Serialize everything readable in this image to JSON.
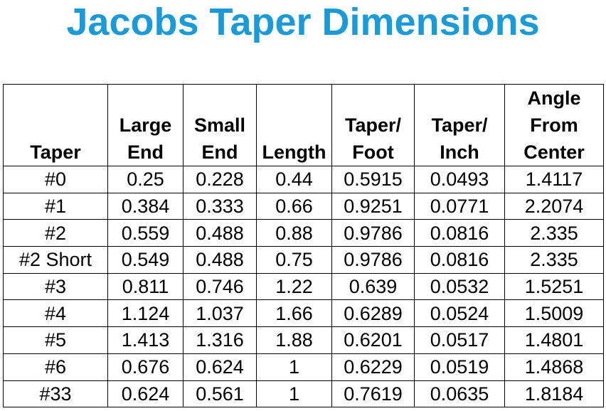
{
  "header": {
    "title": "Jacobs Taper Dimensions"
  },
  "table": {
    "columns": [
      [
        "Taper"
      ],
      [
        "Large",
        "End"
      ],
      [
        "Small",
        "End"
      ],
      [
        "Length"
      ],
      [
        "Taper/",
        "Foot"
      ],
      [
        "Taper/",
        "Inch"
      ],
      [
        "Angle",
        "From",
        "Center"
      ]
    ],
    "rows": [
      [
        "#0",
        "0.25",
        "0.228",
        "0.44",
        "0.5915",
        "0.0493",
        "1.4117"
      ],
      [
        "#1",
        "0.384",
        "0.333",
        "0.66",
        "0.9251",
        "0.0771",
        "2.2074"
      ],
      [
        "#2",
        "0.559",
        "0.488",
        "0.88",
        "0.9786",
        "0.0816",
        "2.335"
      ],
      [
        "#2 Short",
        "0.549",
        "0.488",
        "0.75",
        "0.9786",
        "0.0816",
        "2.335"
      ],
      [
        "#3",
        "0.811",
        "0.746",
        "1.22",
        "0.639",
        "0.0532",
        "1.5251"
      ],
      [
        "#4",
        "1.124",
        "1.037",
        "1.66",
        "0.6289",
        "0.0524",
        "1.5009"
      ],
      [
        "#5",
        "1.413",
        "1.316",
        "1.88",
        "0.6201",
        "0.0517",
        "1.4801"
      ],
      [
        "#6",
        "0.676",
        "0.624",
        "1",
        "0.6229",
        "0.0519",
        "1.4868"
      ],
      [
        "#33",
        "0.624",
        "0.561",
        "1",
        "0.7619",
        "0.0635",
        "1.8184"
      ]
    ]
  }
}
